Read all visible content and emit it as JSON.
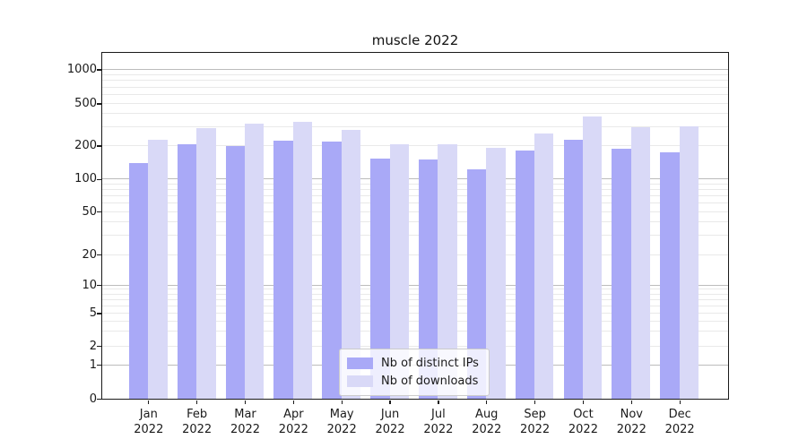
{
  "chart_data": {
    "type": "bar",
    "title": "muscle 2022",
    "categories": [
      "Jan",
      "Feb",
      "Mar",
      "Apr",
      "May",
      "Jun",
      "Jul",
      "Aug",
      "Sep",
      "Oct",
      "Nov",
      "Dec"
    ],
    "category_year": "2022",
    "series": [
      {
        "name": "Nb of distinct IPs",
        "color": "#a9a9f7",
        "values": [
          138,
          206,
          197,
          222,
          218,
          153,
          150,
          123,
          180,
          226,
          187,
          173
        ]
      },
      {
        "name": "Nb of downloads",
        "color": "#d9d9f7",
        "values": [
          226,
          290,
          325,
          333,
          280,
          206,
          205,
          190,
          260,
          380,
          297,
          303
        ]
      }
    ],
    "xlabel": "",
    "ylabel": "",
    "yscale": "symlog",
    "yticks": [
      1000,
      500,
      200,
      100,
      50,
      20,
      10,
      5,
      2,
      1,
      0
    ],
    "ylim": [
      0,
      1400
    ],
    "grid": true,
    "legend_position": "lower center"
  }
}
